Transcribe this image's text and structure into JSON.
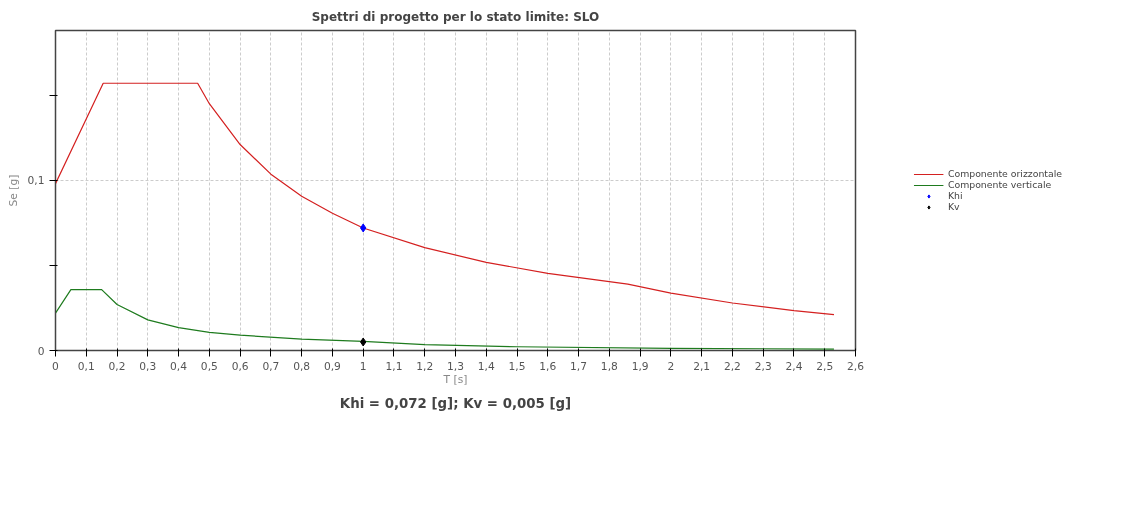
{
  "chart_data": {
    "type": "line",
    "title": "Spettri di progetto per lo stato limite: SLO",
    "xlabel": "T [s]",
    "ylabel": "Se [g]",
    "annotations": [
      "Khi = 0,072 [g]; Kv = 0,005 [g]"
    ],
    "xlim": [
      0,
      2.6
    ],
    "ylim": [
      0,
      0.188
    ],
    "xticks": [
      0,
      {
        "value": 0.1,
        "label": "0,1"
      },
      {
        "value": 0.2,
        "label": "0,2"
      },
      {
        "value": 0.3,
        "label": "0,3"
      },
      {
        "value": 0.4,
        "label": "0,4"
      },
      {
        "value": 0.5,
        "label": "0,5"
      },
      {
        "value": 0.6,
        "label": "0,6"
      },
      {
        "value": 0.7,
        "label": "0,7"
      },
      {
        "value": 0.8,
        "label": "0,8"
      },
      {
        "value": 0.9,
        "label": "0,9"
      },
      1,
      {
        "value": 1.1,
        "label": "1,1"
      },
      {
        "value": 1.2,
        "label": "1,2"
      },
      {
        "value": 1.3,
        "label": "1,3"
      },
      {
        "value": 1.4,
        "label": "1,4"
      },
      {
        "value": 1.5,
        "label": "1,5"
      },
      {
        "value": 1.6,
        "label": "1,6"
      },
      {
        "value": 1.7,
        "label": "1,7"
      },
      {
        "value": 1.8,
        "label": "1,8"
      },
      {
        "value": 1.9,
        "label": "1,9"
      },
      2,
      {
        "value": 2.1,
        "label": "2,1"
      },
      {
        "value": 2.2,
        "label": "2,2"
      },
      {
        "value": 2.3,
        "label": "2,3"
      },
      {
        "value": 2.4,
        "label": "2,4"
      },
      {
        "value": 2.5,
        "label": "2,5"
      },
      {
        "value": 2.6,
        "label": "2,6"
      }
    ],
    "yticks": [
      0,
      {
        "value": 0.05,
        "label": null
      },
      {
        "value": 0.1,
        "label": "0,1"
      },
      {
        "value": 0.15,
        "label": null
      }
    ],
    "grid": true,
    "legend": "right",
    "line_style": "solid",
    "series": [
      {
        "name": "Componente orizzontale",
        "color": "#d42020",
        "marker": "none",
        "x": [
          0,
          0.155,
          0.462,
          0.5,
          0.6,
          0.7,
          0.8,
          0.9,
          1.0,
          1.2,
          1.4,
          1.6,
          1.86,
          2.0,
          2.2,
          2.4,
          2.53
        ],
        "values": [
          0.098,
          0.157,
          0.157,
          0.145,
          0.121,
          0.1036,
          0.0906,
          0.0806,
          0.072,
          0.0604,
          0.0518,
          0.0453,
          0.039,
          0.0337,
          0.0279,
          0.0234,
          0.0211
        ]
      },
      {
        "name": "Componente verticale",
        "color": "#1e7b1e",
        "marker": "none",
        "x": [
          0,
          0.05,
          0.15,
          0.2,
          0.3,
          0.4,
          0.5,
          0.6,
          0.8,
          1.0,
          1.2,
          1.5,
          2.0,
          2.53
        ],
        "values": [
          0.022,
          0.0358,
          0.0358,
          0.027,
          0.018,
          0.0134,
          0.0107,
          0.009,
          0.0067,
          0.0054,
          0.0035,
          0.0022,
          0.0013,
          0.0008
        ]
      },
      {
        "name": "Khi",
        "type": "scatter",
        "color": "#0000ff",
        "marker": "diamond",
        "x": [
          1
        ],
        "values": [
          0.072
        ]
      },
      {
        "name": "Kv",
        "type": "scatter",
        "color": "#000000",
        "marker": "diamond",
        "x": [
          1
        ],
        "values": [
          0.005
        ]
      }
    ]
  }
}
